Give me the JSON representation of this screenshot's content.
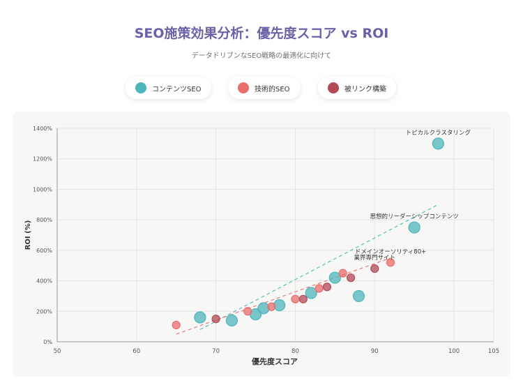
{
  "title": "SEO施策効果分析：優先度スコア vs ROI",
  "subtitle": "データドリブンなSEO戦略の最適化に向けて",
  "legend": [
    {
      "label": "コンテンツSEO",
      "color": "#4db6ba"
    },
    {
      "label": "技術的SEO",
      "color": "#ea6e6e"
    },
    {
      "label": "被リンク構築",
      "color": "#b24b57"
    }
  ],
  "chart_data": {
    "type": "scatter",
    "xlabel": "優先度スコア",
    "ylabel": "ROI (%)",
    "xlim": [
      50,
      105
    ],
    "ylim": [
      0,
      1400
    ],
    "x_ticks": [
      "50",
      "60",
      "70",
      "80",
      "90",
      "100",
      "105"
    ],
    "y_ticks": [
      "0%",
      "200%",
      "400%",
      "600%",
      "800%",
      "1000%",
      "1200%",
      "1400%"
    ],
    "grid": true,
    "series": [
      {
        "name": "コンテンツSEO",
        "color": "#4db6ba",
        "points": [
          {
            "x": 68,
            "y": 160
          },
          {
            "x": 72,
            "y": 140
          },
          {
            "x": 75,
            "y": 180
          },
          {
            "x": 76,
            "y": 220
          },
          {
            "x": 78,
            "y": 240
          },
          {
            "x": 82,
            "y": 320
          },
          {
            "x": 85,
            "y": 420
          },
          {
            "x": 88,
            "y": 300
          },
          {
            "x": 95,
            "y": 750,
            "label": "思想的リーダーシップコンテンツ"
          },
          {
            "x": 98,
            "y": 1300,
            "label": "トピカルクラスタリング"
          }
        ]
      },
      {
        "name": "技術的SEO",
        "color": "#ea6e6e",
        "points": [
          {
            "x": 65,
            "y": 110
          },
          {
            "x": 74,
            "y": 200
          },
          {
            "x": 77,
            "y": 230
          },
          {
            "x": 80,
            "y": 280
          },
          {
            "x": 83,
            "y": 350
          },
          {
            "x": 86,
            "y": 450
          },
          {
            "x": 92,
            "y": 520,
            "label": "ドメインオーソリティ80+"
          }
        ]
      },
      {
        "name": "被リンク構築",
        "color": "#b24b57",
        "points": [
          {
            "x": 70,
            "y": 150
          },
          {
            "x": 81,
            "y": 280
          },
          {
            "x": 84,
            "y": 360
          },
          {
            "x": 87,
            "y": 420
          },
          {
            "x": 90,
            "y": 480,
            "label": "業界専門サイト"
          }
        ]
      }
    ],
    "trendlines": [
      {
        "name": "コンテンツSEO",
        "color": "#4db6ba",
        "from": [
          68,
          80
        ],
        "to": [
          98,
          900
        ]
      },
      {
        "name": "技術的SEO",
        "color": "#ea6e6e",
        "from": [
          65,
          50
        ],
        "to": [
          92,
          550
        ]
      }
    ]
  }
}
